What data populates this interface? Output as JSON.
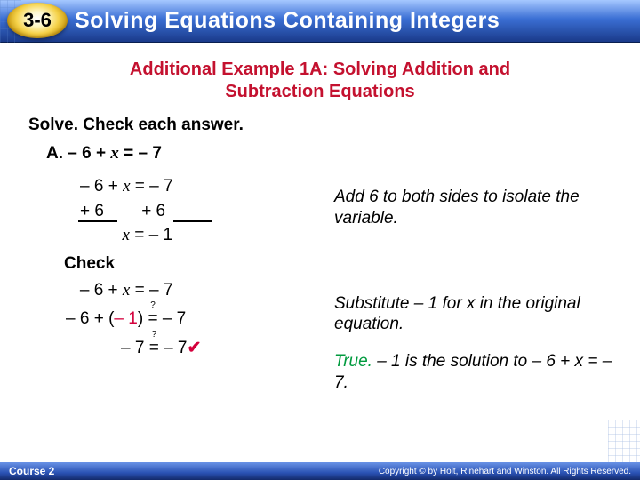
{
  "colors": {
    "header_gradient_top": "#a6c8ff",
    "header_gradient_mid": "#3b6fd4",
    "header_gradient_bottom": "#1a3a8a",
    "badge_highlight": "#fdf6c4",
    "badge_mid": "#f5d24a",
    "badge_edge": "#c99a10",
    "title_color": "#ffffff",
    "subtitle_color": "#c4112f",
    "body_text": "#000000",
    "substitute_red": "#d4003c",
    "true_green": "#009a3e",
    "check_red": "#d4003c",
    "footer_top": "#6a93e6",
    "footer_bottom": "#132a6a"
  },
  "typography": {
    "header_title_pt": 25,
    "subtitle_pt": 20,
    "body_pt": 19,
    "footer_pt": 12,
    "family_heading": "Arial Black",
    "family_body": "Verdana"
  },
  "header": {
    "section_number": "3-6",
    "title": "Solving Equations Containing Integers"
  },
  "subtitle_line1": "Additional Example 1A: Solving Addition and",
  "subtitle_line2": "Subtraction Equations",
  "instruction": "Solve. Check each answer.",
  "problem": {
    "label_prefix": "A. – 6 + ",
    "label_var": "x",
    "label_suffix": " = – 7"
  },
  "work": {
    "line1_a": "– 6 + ",
    "line1_var": "x",
    "line1_b": " = – 7",
    "line2_left": "+ 6",
    "line2_right": "+ 6",
    "line3_var": "x",
    "line3_b": " = – 1"
  },
  "check_label": "Check",
  "check": {
    "line1_a": "– 6 + ",
    "line1_var": "x",
    "line1_b": " = – 7",
    "line2_a": "– 6 + (",
    "line2_sub": "– 1",
    "line2_b": ") ",
    "line2_eq": "=",
    "line2_c": " – 7",
    "line3_a": "– 7 ",
    "line3_eq": "=",
    "line3_b": " – 7",
    "checkmark": "✔",
    "question_mark": "?"
  },
  "explain": {
    "e1": "Add 6 to both sides to isolate the variable.",
    "e2": "Substitute – 1 for x in the original equation.",
    "e3_a": "True.",
    "e3_b": " – 1 is the solution to – 6 + x = – 7."
  },
  "footer": {
    "left": "Course 2",
    "right": "Copyright © by Holt, Rinehart and Winston. All Rights Reserved."
  }
}
